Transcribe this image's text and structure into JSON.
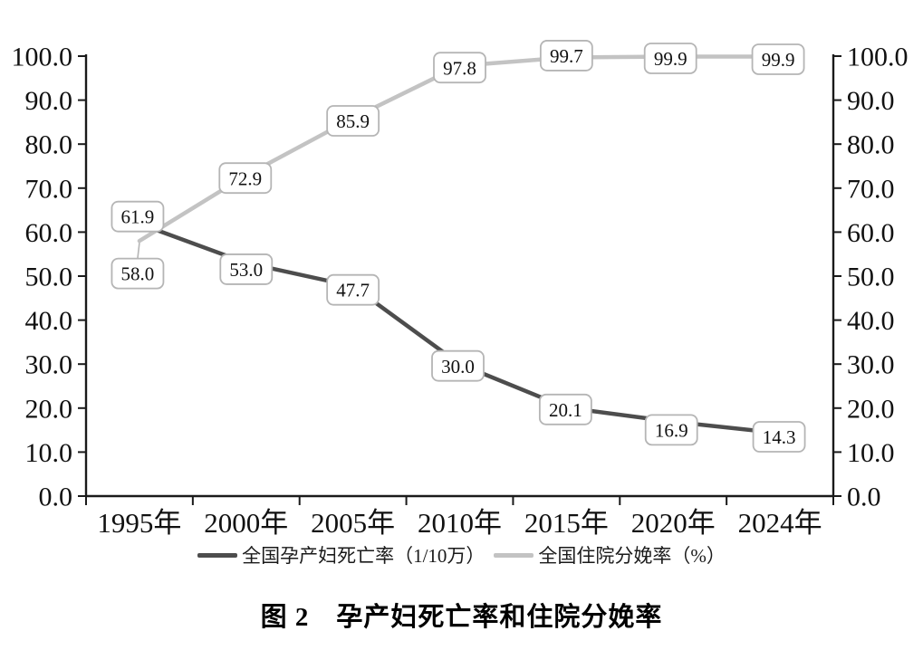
{
  "chart_data": {
    "type": "line",
    "title": "图 2　孕产妇死亡率和住院分娩率",
    "categories": [
      "1995年",
      "2000年",
      "2005年",
      "2010年",
      "2015年",
      "2020年",
      "2024年"
    ],
    "series": [
      {
        "name": "全国孕产妇死亡率（1/10万）",
        "values": [
          61.9,
          53.0,
          47.7,
          30.0,
          20.1,
          16.9,
          14.3
        ],
        "color": "#4d4d4d"
      },
      {
        "name": "全国住院分娩率（%）",
        "values": [
          58.0,
          72.9,
          85.9,
          97.8,
          99.7,
          99.9,
          99.9
        ],
        "color": "#c3c3c3"
      }
    ],
    "ylim": [
      0,
      100
    ],
    "yticks": [
      0,
      10,
      20,
      30,
      40,
      50,
      60,
      70,
      80,
      90,
      100
    ],
    "ytick_decimals": 1,
    "dual_axis": true,
    "grid": false,
    "legend_position": "bottom",
    "data_labels": true,
    "data_label_decimals": 1,
    "axis_color": "#1a1a1a",
    "label_box_border_color": "#b5b5b5",
    "label_box_fill": "#ffffff"
  }
}
